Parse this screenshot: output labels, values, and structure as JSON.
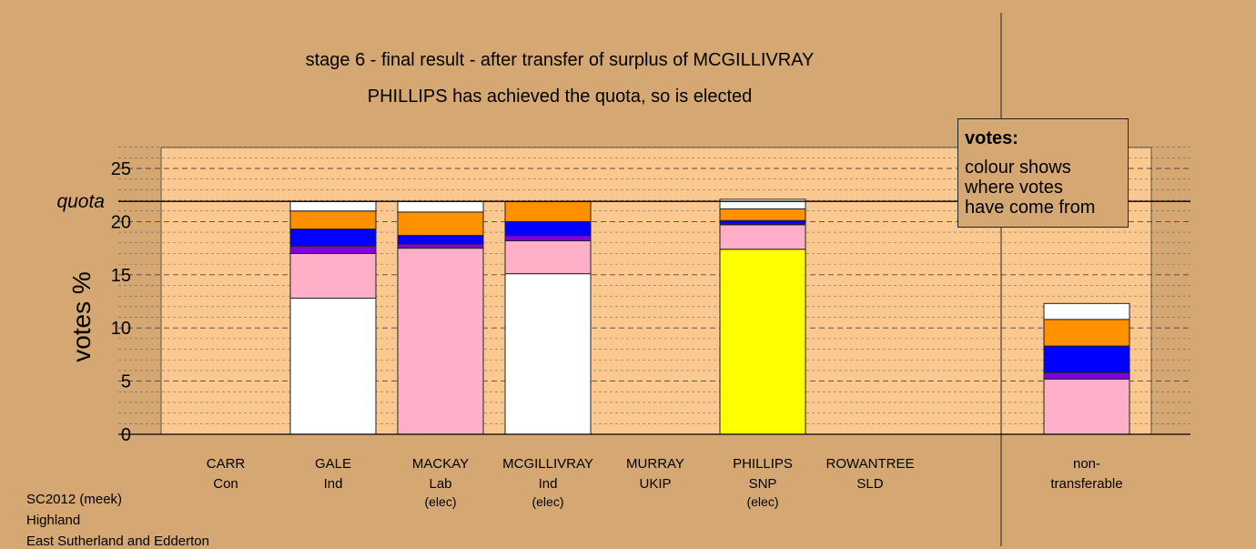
{
  "title_line1": "stage 6 - final result - after transfer of surplus of MCGILLIVRAY",
  "title_line2": "PHILLIPS has achieved the quota, so is elected",
  "legend": {
    "title": "votes:",
    "lines": [
      "colour shows",
      "where votes",
      "have come from"
    ]
  },
  "footer": [
    "SC2012 (meek)",
    "Highland",
    "East Sutherland and Edderton"
  ],
  "colors": {
    "background": "#d5a873",
    "plot_area": "#fbc98f",
    "white": "#ffffff",
    "pink": "#ffb0c8",
    "purple": "#8000e0",
    "blue": "#0000ff",
    "orange": "#ff9000",
    "yellow": "#ffff00"
  },
  "chart_data": {
    "type": "bar",
    "stacked": true,
    "ylabel": "votes %",
    "ylim": [
      0,
      27
    ],
    "yticks": [
      0,
      5,
      10,
      15,
      20,
      25
    ],
    "quota": 21.9,
    "quota_label": "quota",
    "grid": true,
    "categories": [
      {
        "name": "CARR",
        "party": "Con",
        "status": ""
      },
      {
        "name": "GALE",
        "party": "Ind",
        "status": ""
      },
      {
        "name": "MACKAY",
        "party": "Lab",
        "status": "(elec)"
      },
      {
        "name": "MCGILLIVRAY",
        "party": "Ind",
        "status": "(elec)"
      },
      {
        "name": "MURRAY",
        "party": "UKIP",
        "status": ""
      },
      {
        "name": "PHILLIPS",
        "party": "SNP",
        "status": "(elec)"
      },
      {
        "name": "ROWANTREE",
        "party": "SLD",
        "status": ""
      },
      {
        "name": "non-",
        "party": "transferable",
        "status": ""
      }
    ],
    "stacks": [
      [],
      [
        {
          "color": "white",
          "value": 12.8
        },
        {
          "color": "pink",
          "value": 4.2
        },
        {
          "color": "purple",
          "value": 0.7
        },
        {
          "color": "blue",
          "value": 1.6
        },
        {
          "color": "orange",
          "value": 1.7
        },
        {
          "color": "white",
          "value": 0.9
        }
      ],
      [
        {
          "color": "pink",
          "value": 17.5
        },
        {
          "color": "purple",
          "value": 0.4
        },
        {
          "color": "blue",
          "value": 0.8
        },
        {
          "color": "orange",
          "value": 2.2
        },
        {
          "color": "white",
          "value": 1.0
        }
      ],
      [
        {
          "color": "white",
          "value": 15.1
        },
        {
          "color": "pink",
          "value": 3.1
        },
        {
          "color": "purple",
          "value": 0.5
        },
        {
          "color": "blue",
          "value": 1.3
        },
        {
          "color": "orange",
          "value": 1.9
        }
      ],
      [],
      [
        {
          "color": "yellow",
          "value": 17.4
        },
        {
          "color": "pink",
          "value": 2.3
        },
        {
          "color": "purple",
          "value": 0.1
        },
        {
          "color": "blue",
          "value": 0.3
        },
        {
          "color": "orange",
          "value": 1.1
        },
        {
          "color": "white",
          "value": 0.9
        }
      ],
      [],
      [
        {
          "color": "pink",
          "value": 5.2
        },
        {
          "color": "purple",
          "value": 0.6
        },
        {
          "color": "blue",
          "value": 2.5
        },
        {
          "color": "orange",
          "value": 2.5
        },
        {
          "color": "white",
          "value": 1.5
        }
      ]
    ]
  }
}
